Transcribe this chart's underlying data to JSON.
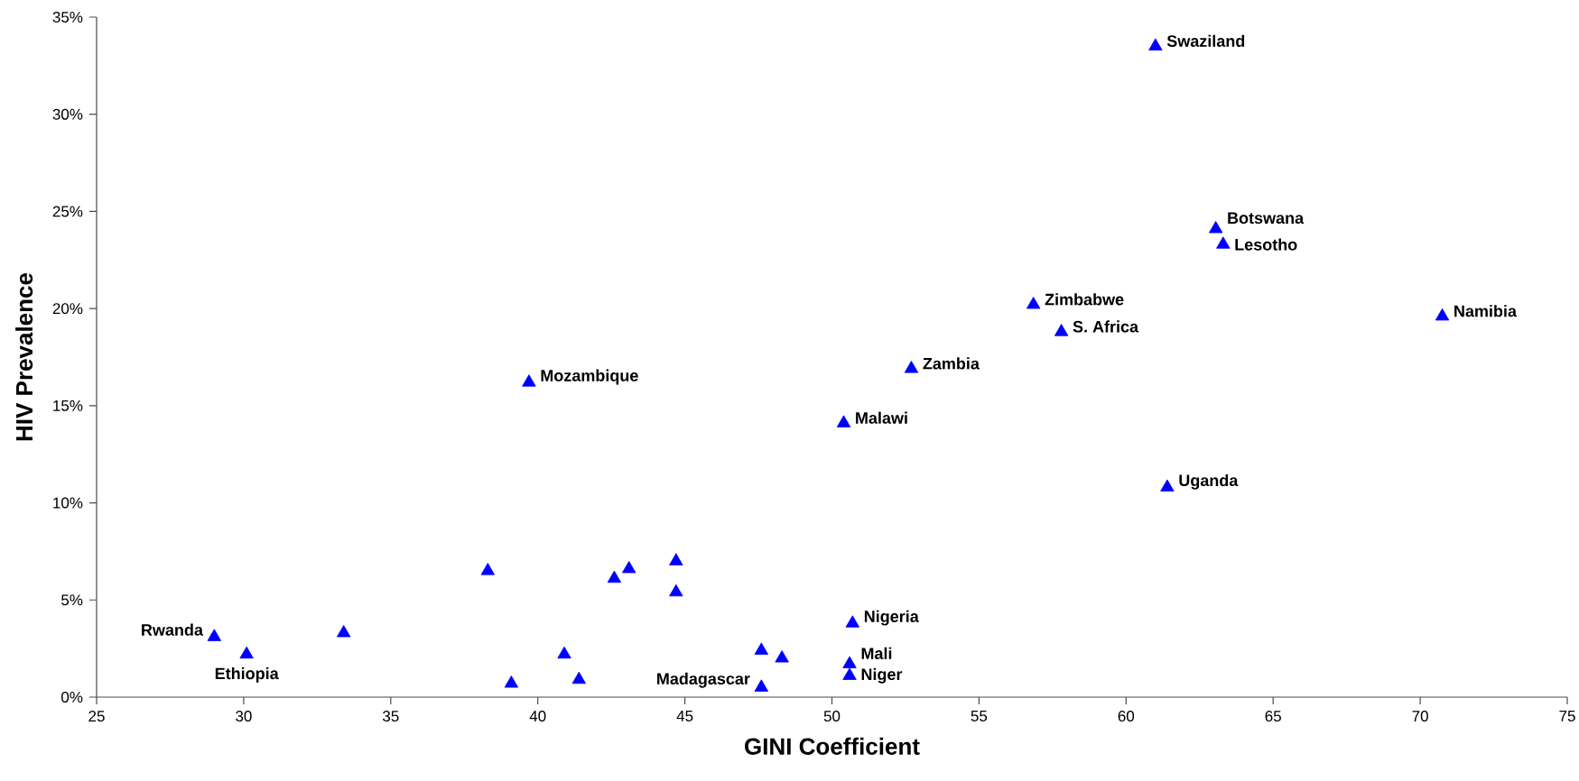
{
  "chart_data": {
    "type": "scatter",
    "xlabel": "GINI Coefficient",
    "ylabel": "HIV Prevalence",
    "x": [
      61.0,
      63.05,
      63.3,
      56.85,
      57.8,
      70.75,
      52.7,
      39.7,
      50.4,
      61.4,
      50.7,
      50.6,
      50.6,
      47.6,
      29.0,
      30.1,
      33.4,
      38.3,
      39.1,
      40.9,
      41.4,
      42.6,
      43.1,
      44.7,
      44.7,
      47.6,
      48.3
    ],
    "values": [
      33.5,
      24.1,
      23.3,
      20.2,
      18.8,
      19.6,
      16.9,
      16.2,
      14.1,
      10.8,
      3.8,
      1.7,
      1.1,
      0.5,
      3.1,
      2.2,
      3.3,
      6.5,
      0.7,
      2.2,
      0.9,
      6.1,
      6.6,
      7.0,
      5.4,
      2.4,
      2.0
    ],
    "color": "#0000ff",
    "marker": "triangle",
    "xlim": [
      25,
      75
    ],
    "xticks": [
      25,
      30,
      35,
      40,
      45,
      50,
      55,
      60,
      65,
      70,
      75
    ],
    "ylim": [
      0,
      35
    ],
    "yticks": [
      {
        "value": 0,
        "label": "0%"
      },
      {
        "value": 5,
        "label": "5%"
      },
      {
        "value": 10,
        "label": "10%"
      },
      {
        "value": 15,
        "label": "15%"
      },
      {
        "value": 20,
        "label": "20%"
      },
      {
        "value": 25,
        "label": "25%"
      },
      {
        "value": 30,
        "label": "30%"
      },
      {
        "value": 35,
        "label": "35%"
      }
    ],
    "annotations": [
      {
        "text": "Swaziland",
        "x": 61.0,
        "y": 33.5
      },
      {
        "text": "Botswana",
        "x": 63.05,
        "y": 24.1
      },
      {
        "text": "Lesotho",
        "x": 63.3,
        "y": 23.3
      },
      {
        "text": "Zimbabwe",
        "x": 56.85,
        "y": 20.2
      },
      {
        "text": "S. Africa",
        "x": 57.8,
        "y": 18.8
      },
      {
        "text": "Namibia",
        "x": 70.75,
        "y": 19.6
      },
      {
        "text": "Zambia",
        "x": 52.7,
        "y": 16.9
      },
      {
        "text": "Mozambique",
        "x": 39.7,
        "y": 16.2
      },
      {
        "text": "Malawi",
        "x": 50.4,
        "y": 14.1
      },
      {
        "text": "Uganda",
        "x": 61.4,
        "y": 10.8
      },
      {
        "text": "Nigeria",
        "x": 50.7,
        "y": 3.8
      },
      {
        "text": "Mali",
        "x": 50.6,
        "y": 1.7
      },
      {
        "text": "Niger",
        "x": 50.6,
        "y": 1.1
      },
      {
        "text": "Madagascar",
        "x": 47.6,
        "y": 0.5
      },
      {
        "text": "Rwanda",
        "x": 29.0,
        "y": 3.1
      },
      {
        "text": "Ethiopia",
        "x": 30.1,
        "y": 2.2
      }
    ]
  }
}
